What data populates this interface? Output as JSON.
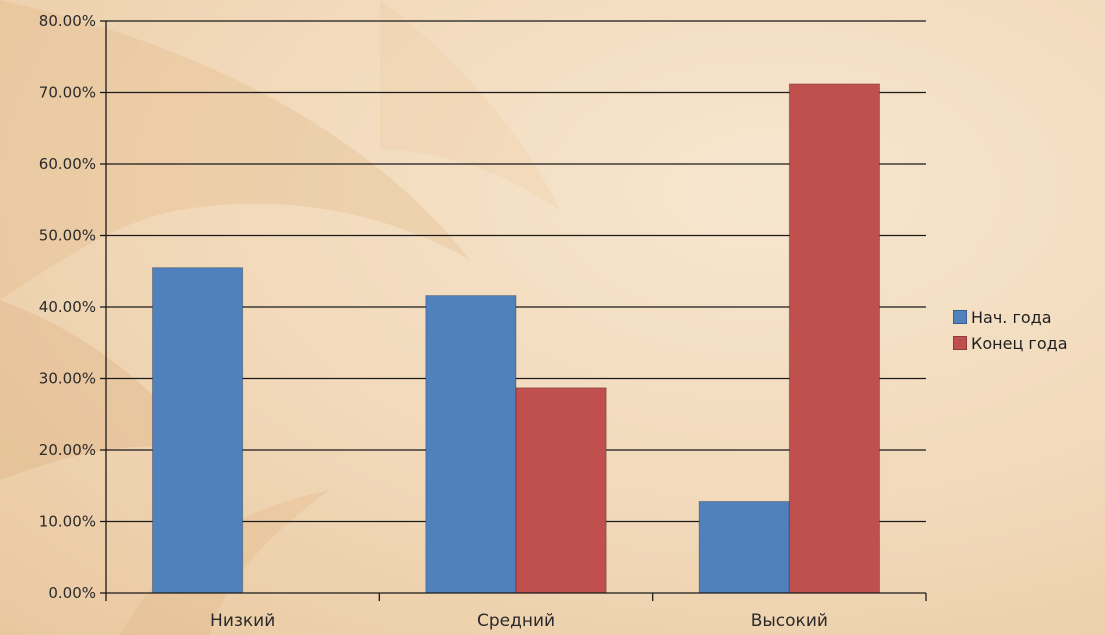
{
  "chart_data": {
    "type": "bar",
    "categories": [
      "Низкий",
      "Средний",
      "Высокий"
    ],
    "series": [
      {
        "name": "Нач. года",
        "color": "#4f81bd",
        "values": [
          45.5,
          41.6,
          12.8
        ]
      },
      {
        "name": "Конец года",
        "color": "#c0504d",
        "values": [
          0,
          28.7,
          71.2
        ]
      }
    ],
    "y_ticks": [
      "0.00%",
      "10.00%",
      "20.00%",
      "30.00%",
      "40.00%",
      "50.00%",
      "60.00%",
      "70.00%",
      "80.00%"
    ],
    "ylim": [
      0,
      80
    ],
    "y_unit": "percent",
    "grid": true,
    "legend_position": "right",
    "title": "",
    "xlabel": "",
    "ylabel": ""
  },
  "legend": {
    "items": [
      {
        "label": "Нач. года",
        "color": "#4f81bd"
      },
      {
        "label": "Конец года",
        "color": "#c0504d"
      }
    ]
  }
}
